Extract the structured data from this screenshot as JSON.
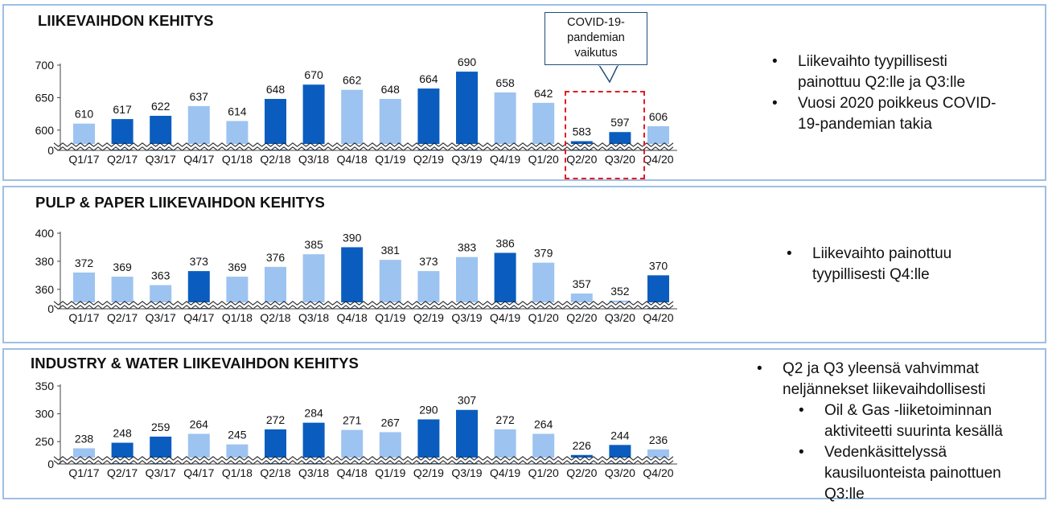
{
  "colors": {
    "light": "#9dc3f0",
    "dark": "#0a5dbf",
    "frame": "#9dbfe3",
    "covid_border": "#e31b23"
  },
  "panels": [
    {
      "title": "LIIKEVAIHDON KEHITYS",
      "bullets": [
        {
          "text": "Liikevaihto tyypillisesti painottuu Q2:lle ja Q3:lle",
          "level": 1
        },
        {
          "text": "Vuosi 2020 poikkeus COVID-19-pandemian takia",
          "level": 1
        }
      ]
    },
    {
      "title": "PULP & PAPER LIIKEVAIHDON KEHITYS",
      "bullets": [
        {
          "text": "Liikevaihto painottuu tyypillisesti Q4:lle",
          "level": 1
        }
      ]
    },
    {
      "title": "INDUSTRY & WATER LIIKEVAIHDON KEHITYS",
      "bullets": [
        {
          "text": "Q2 ja Q3 yleensä vahvimmat neljännekset liikevaihdollisesti",
          "level": 1
        },
        {
          "text": "Oil & Gas -liiketoiminnan aktiviteetti suurinta kesällä",
          "level": 2
        },
        {
          "text": "Vedenkäsittelyssä kausiluonteista painottuen Q3:lle",
          "level": 2
        }
      ]
    }
  ],
  "covid_note": {
    "line1": "COVID-19-",
    "line2": "pandemian",
    "line3": "vaikutus"
  },
  "chart_data": [
    {
      "type": "bar",
      "title": "LIIKEVAIHDON KEHITYS",
      "categories": [
        "Q1/17",
        "Q2/17",
        "Q3/17",
        "Q4/17",
        "Q1/18",
        "Q2/18",
        "Q3/18",
        "Q4/18",
        "Q1/19",
        "Q2/19",
        "Q3/19",
        "Q4/19",
        "Q1/20",
        "Q2/20",
        "Q3/20",
        "Q4/20"
      ],
      "values": [
        610,
        617,
        622,
        637,
        614,
        648,
        670,
        662,
        648,
        664,
        690,
        658,
        642,
        583,
        597,
        606
      ],
      "highlight": [
        false,
        true,
        true,
        false,
        false,
        true,
        true,
        false,
        false,
        true,
        true,
        false,
        false,
        true,
        true,
        false
      ],
      "yticks": [
        0,
        600,
        650,
        700
      ],
      "ylim": [
        575,
        700
      ],
      "axis_break": true,
      "grid": false
    },
    {
      "type": "bar",
      "title": "PULP & PAPER LIIKEVAIHDON KEHITYS",
      "categories": [
        "Q1/17",
        "Q2/17",
        "Q3/17",
        "Q4/17",
        "Q1/18",
        "Q2/18",
        "Q3/18",
        "Q4/18",
        "Q1/19",
        "Q2/19",
        "Q3/19",
        "Q4/19",
        "Q1/20",
        "Q2/20",
        "Q3/20",
        "Q4/20"
      ],
      "values": [
        372,
        369,
        363,
        373,
        369,
        376,
        385,
        390,
        381,
        373,
        383,
        386,
        379,
        357,
        352,
        370
      ],
      "highlight": [
        false,
        false,
        false,
        true,
        false,
        false,
        false,
        true,
        false,
        false,
        false,
        true,
        false,
        false,
        false,
        true
      ],
      "yticks": [
        0,
        360,
        380,
        400
      ],
      "ylim": [
        349,
        400
      ],
      "axis_break": true,
      "grid": false
    },
    {
      "type": "bar",
      "title": "INDUSTRY & WATER LIIKEVAIHDON KEHITYS",
      "categories": [
        "Q1/17",
        "Q2/17",
        "Q3/17",
        "Q4/17",
        "Q1/18",
        "Q2/18",
        "Q3/18",
        "Q4/18",
        "Q1/19",
        "Q2/19",
        "Q3/19",
        "Q4/19",
        "Q1/20",
        "Q2/20",
        "Q3/20",
        "Q4/20"
      ],
      "values": [
        238,
        248,
        259,
        264,
        245,
        272,
        284,
        271,
        267,
        290,
        307,
        272,
        264,
        226,
        244,
        236
      ],
      "highlight": [
        false,
        true,
        true,
        false,
        false,
        true,
        true,
        false,
        false,
        true,
        true,
        false,
        false,
        true,
        true,
        false
      ],
      "yticks": [
        0,
        250,
        300,
        350
      ],
      "ylim": [
        217,
        350
      ],
      "axis_break": true,
      "grid": false
    }
  ]
}
